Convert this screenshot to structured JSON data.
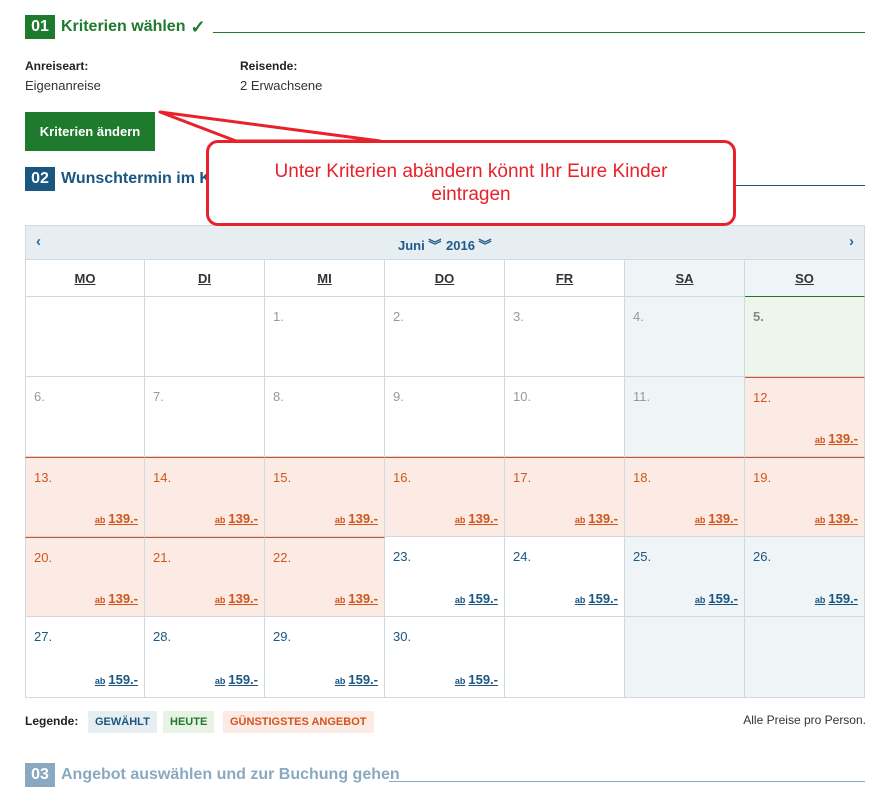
{
  "steps": [
    {
      "num": "01",
      "title": "Kriterien wählen",
      "check": "✓"
    },
    {
      "num": "02",
      "title": "Wunschtermin im Ka"
    },
    {
      "num": "03",
      "title": "Angebot auswählen und zur Buchung gehen"
    }
  ],
  "criteria": {
    "arrival_label": "Anreiseart:",
    "arrival_value": "Eigenanreise",
    "travelers_label": "Reisende:",
    "travelers_value": "2 Erwachsene",
    "change_button": "Kriterien ändern"
  },
  "callout": "Unter Kriterien abändern könnt Ihr Eure Kinder eintragen",
  "calendar": {
    "prev": "‹",
    "next": "›",
    "month": "Juni",
    "year": "2016",
    "weekdays": [
      "MO",
      "DI",
      "MI",
      "DO",
      "FR",
      "SA",
      "SO"
    ],
    "days": [
      {
        "d": "",
        "t": "empty"
      },
      {
        "d": "",
        "t": "empty"
      },
      {
        "d": "1.",
        "t": "past"
      },
      {
        "d": "2.",
        "t": "past"
      },
      {
        "d": "3.",
        "t": "past"
      },
      {
        "d": "4.",
        "t": "past"
      },
      {
        "d": "5.",
        "t": "today"
      },
      {
        "d": "6.",
        "t": "past"
      },
      {
        "d": "7.",
        "t": "past"
      },
      {
        "d": "8.",
        "t": "past"
      },
      {
        "d": "9.",
        "t": "past"
      },
      {
        "d": "10.",
        "t": "past"
      },
      {
        "d": "11.",
        "t": "past"
      },
      {
        "d": "12.",
        "t": "cheap",
        "p": "139.-"
      },
      {
        "d": "13.",
        "t": "cheap",
        "p": "139.-"
      },
      {
        "d": "14.",
        "t": "cheap",
        "p": "139.-"
      },
      {
        "d": "15.",
        "t": "cheap",
        "p": "139.-"
      },
      {
        "d": "16.",
        "t": "cheap",
        "p": "139.-"
      },
      {
        "d": "17.",
        "t": "cheap",
        "p": "139.-"
      },
      {
        "d": "18.",
        "t": "cheap",
        "p": "139.-"
      },
      {
        "d": "19.",
        "t": "cheap",
        "p": "139.-"
      },
      {
        "d": "20.",
        "t": "cheap",
        "p": "139.-"
      },
      {
        "d": "21.",
        "t": "cheap",
        "p": "139.-"
      },
      {
        "d": "22.",
        "t": "cheap",
        "p": "139.-"
      },
      {
        "d": "23.",
        "t": "normal",
        "p": "159.-"
      },
      {
        "d": "24.",
        "t": "normal",
        "p": "159.-"
      },
      {
        "d": "25.",
        "t": "normal",
        "p": "159.-"
      },
      {
        "d": "26.",
        "t": "normal",
        "p": "159.-"
      },
      {
        "d": "27.",
        "t": "normal",
        "p": "159.-"
      },
      {
        "d": "28.",
        "t": "normal",
        "p": "159.-"
      },
      {
        "d": "29.",
        "t": "normal",
        "p": "159.-"
      },
      {
        "d": "30.",
        "t": "normal",
        "p": "159.-"
      },
      {
        "d": "",
        "t": "empty"
      },
      {
        "d": "",
        "t": "empty"
      },
      {
        "d": "",
        "t": "empty"
      }
    ],
    "price_prefix": "ab"
  },
  "legend": {
    "label": "Legende:",
    "selected": "GEWÄHLT",
    "today": "HEUTE",
    "cheapest": "GÜNSTIGSTES ANGEBOT",
    "note": "Alle Preise pro Person."
  },
  "colors": {
    "green": "#1e7a2c",
    "blue": "#1a5680",
    "faded": "#8aa9c0",
    "orange": "#d2551b",
    "cheap_bg": "#fbebe4",
    "today_bg": "#eef6ec",
    "weekend_bg": "#eff4f7",
    "callout": "#e8222a"
  }
}
